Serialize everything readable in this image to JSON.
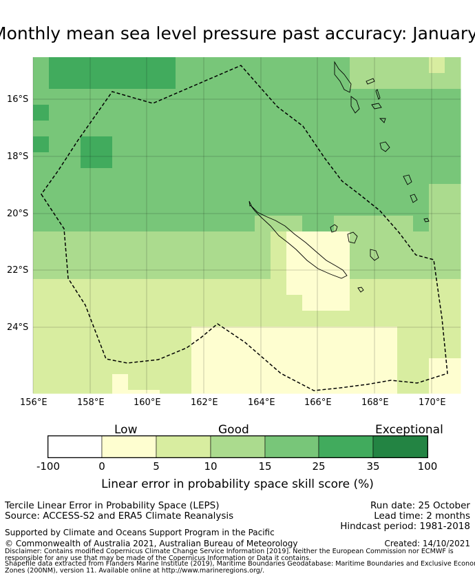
{
  "title": "Monthly mean sea level pressure past accuracy: January - A",
  "map": {
    "lat_labels": [
      "16°S",
      "18°S",
      "20°S",
      "22°S",
      "24°S"
    ],
    "lon_labels": [
      "156°E",
      "158°E",
      "160°E",
      "162°E",
      "164°E",
      "166°E",
      "168°E",
      "170°E"
    ],
    "legend_categories": [
      {
        "range": "-100 to 0",
        "color": "#ffffff"
      },
      {
        "range": "0 to 5",
        "color": "#fefed0"
      },
      {
        "range": "5 to 10",
        "color": "#d8eda0"
      },
      {
        "range": "10 to 15",
        "color": "#abdb8e"
      },
      {
        "range": "15 to 25",
        "color": "#78c679"
      },
      {
        "range": "25 to 35",
        "color": "#41ab5d"
      },
      {
        "range": "35 to 100",
        "color": "#238443"
      }
    ]
  },
  "colorbar": {
    "labels_top": [
      "Low",
      "Good",
      "Exceptional"
    ],
    "ticks": [
      "-100",
      "0",
      "5",
      "10",
      "15",
      "25",
      "35",
      "100"
    ],
    "title": "Linear error in probability space skill score (%)"
  },
  "footer": {
    "left1": "Tercile Linear Error in Probability Space (LEPS)",
    "left2": "Source: ACCESS-S2 and ERA5 Climate Reanalysis",
    "right1": "Run date: 25 October",
    "right2": "Lead time: 2 months",
    "right3": "Hindcast period: 1981-2018",
    "support": "Supported by Climate and Oceans Support Program in the Pacific",
    "created": "Created: 14/10/2021",
    "copyright": "© Commonwealth of Australia 2021, Australian Bureau of Meteorology",
    "disclaimer1": "Disclaimer: Contains modified Copernicus Climate Change Service Information [2019]. Neither the European Commission nor ECMWF is",
    "disclaimer2": "responsible for any use that may be made of the Copernicus Information or Data it contains.",
    "disclaimer3": "Shapefile data extracted from Flanders Marine Institute (2019), Maritime Boundaries Geodatabase: Maritime Boundaries and Exclusive Economic",
    "disclaimer4": "Zones (200NM), version 11. Available online at http://www.marineregions.org/."
  }
}
